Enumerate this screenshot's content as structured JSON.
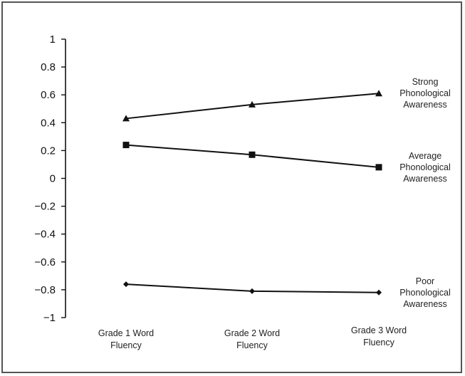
{
  "chart_data": {
    "type": "line",
    "title": "",
    "xlabel": "",
    "ylabel": "",
    "ylim": [
      -1,
      1
    ],
    "yticks": [
      1,
      0.8,
      0.6,
      0.4,
      0.2,
      0,
      -0.2,
      -0.4,
      -0.6,
      -0.8,
      -1
    ],
    "ytick_labels": [
      "1",
      "0.8",
      "0.6",
      "0.4",
      "0.2",
      "0",
      "−0.2",
      "−0.4",
      "−0.6",
      "−0.8",
      "−1"
    ],
    "grid": false,
    "legend": "direct labels at right end of each line",
    "categories": [
      [
        "Grade 1 Word",
        "Fluency"
      ],
      [
        "Grade 2 Word",
        "Fluency"
      ],
      [
        "Grade 3 Word",
        "Fluency"
      ]
    ],
    "series": [
      {
        "name": [
          "Strong",
          "Phonological",
          "Awareness"
        ],
        "marker": "triangle",
        "color": "#111111",
        "values": [
          0.43,
          0.53,
          0.61
        ]
      },
      {
        "name": [
          "Average",
          "Phonological",
          "Awareness"
        ],
        "marker": "square",
        "color": "#111111",
        "values": [
          0.24,
          0.17,
          0.08
        ]
      },
      {
        "name": [
          "Poor",
          "Phonological",
          "Awareness"
        ],
        "marker": "diamond",
        "color": "#111111",
        "values": [
          -0.76,
          -0.81,
          -0.82
        ]
      }
    ]
  }
}
